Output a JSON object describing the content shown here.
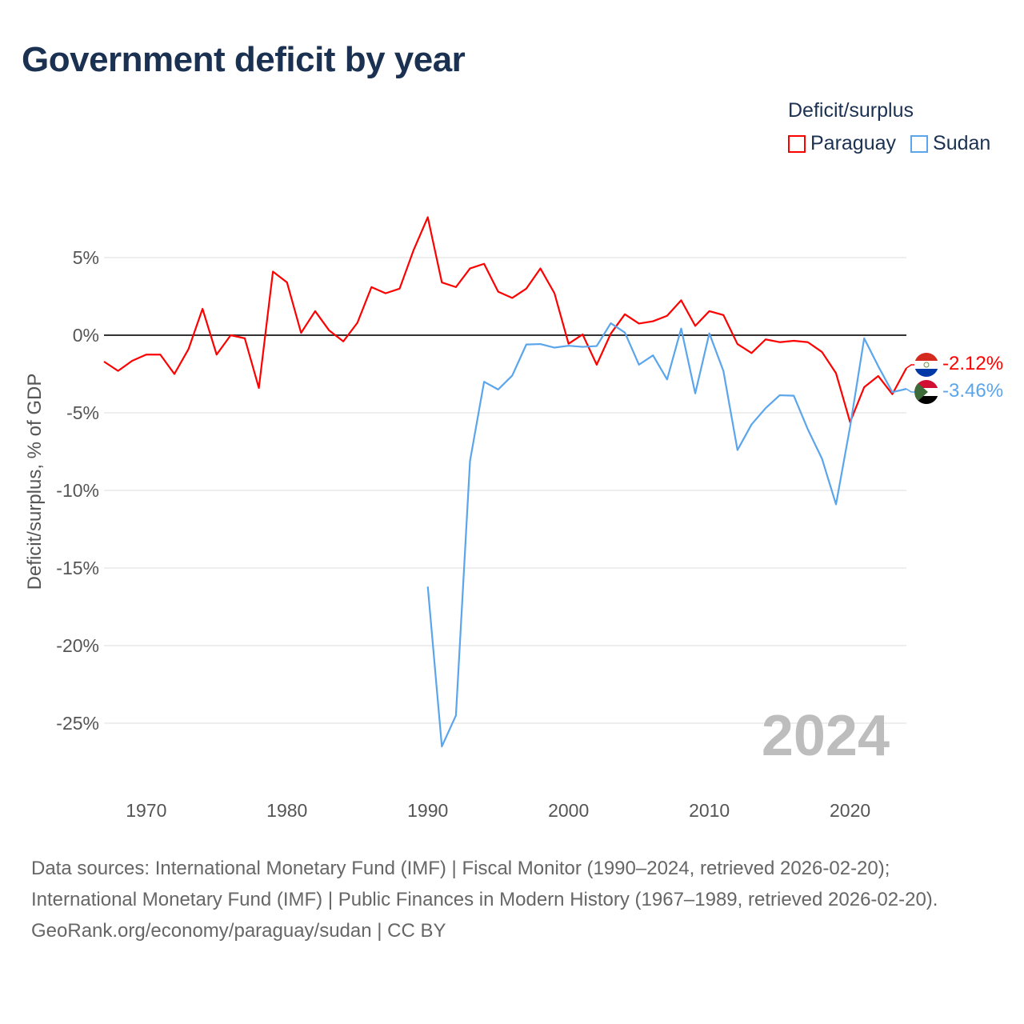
{
  "title": "Government deficit by year",
  "legend": {
    "title": "Deficit/surplus",
    "items": [
      {
        "name": "Paraguay",
        "color": "#ff0000"
      },
      {
        "name": "Sudan",
        "color": "#5aa5eb"
      }
    ]
  },
  "watermark_year": "2024",
  "footer": {
    "line1": "Data sources: International Monetary Fund (IMF) | Fiscal Monitor (1990–2024, retrieved 2026-02-20); International Monetary Fund (IMF) | Public Finances in Modern History (1967–1989, retrieved 2026-02-20).",
    "line2": "GeoRank.org/economy/paraguay/sudan | CC BY"
  },
  "chart_data": {
    "type": "line",
    "title": "Government deficit by year",
    "xlabel": "",
    "ylabel": "Deficit/surplus, % of GDP",
    "xlim": [
      1967,
      2024
    ],
    "ylim": [
      -28,
      9
    ],
    "xticks": [
      1970,
      1980,
      1990,
      2000,
      2010,
      2020
    ],
    "yticks": [
      5,
      0,
      -5,
      -10,
      -15,
      -20,
      -25
    ],
    "ytick_labels": [
      "5%",
      "0%",
      "-5%",
      "-10%",
      "-15%",
      "-20%",
      "-25%"
    ],
    "grid": true,
    "legend_position": "top-right",
    "series": [
      {
        "name": "Paraguay",
        "color": "#ff0000",
        "start_year": 1967,
        "end_label": "-2.12%",
        "values": [
          -1.7,
          -2.3,
          -1.65,
          -1.25,
          -1.25,
          -2.5,
          -0.9,
          1.7,
          -1.25,
          0,
          -0.2,
          -3.4,
          4.1,
          3.4,
          0.15,
          1.55,
          0.3,
          -0.4,
          0.8,
          3.1,
          2.7,
          3.0,
          5.5,
          7.6,
          3.4,
          3.1,
          4.3,
          4.6,
          2.8,
          2.4,
          3.0,
          4.3,
          2.7,
          -0.55,
          0.05,
          -1.9,
          0.1,
          1.35,
          0.75,
          0.9,
          1.25,
          2.25,
          0.6,
          1.55,
          1.3,
          -0.57,
          -1.15,
          -0.27,
          -0.45,
          -0.36,
          -0.45,
          -1.08,
          -2.45,
          -5.6,
          -3.35,
          -2.63,
          -3.8,
          -2.12
        ]
      },
      {
        "name": "Sudan",
        "color": "#5aa5eb",
        "start_year": 1990,
        "end_label": "-3.46%",
        "values": [
          -16.2,
          -26.5,
          -24.5,
          -8.1,
          -3.0,
          -3.5,
          -2.6,
          -0.6,
          -0.57,
          -0.8,
          -0.68,
          -0.75,
          -0.7,
          0.77,
          0.17,
          -1.9,
          -1.3,
          -2.85,
          0.43,
          -3.75,
          0.12,
          -2.3,
          -7.4,
          -5.75,
          -4.7,
          -3.87,
          -3.9,
          -6.07,
          -7.95,
          -10.9,
          -5.9,
          -0.2,
          -2.0,
          -3.67,
          -3.46
        ]
      }
    ]
  }
}
